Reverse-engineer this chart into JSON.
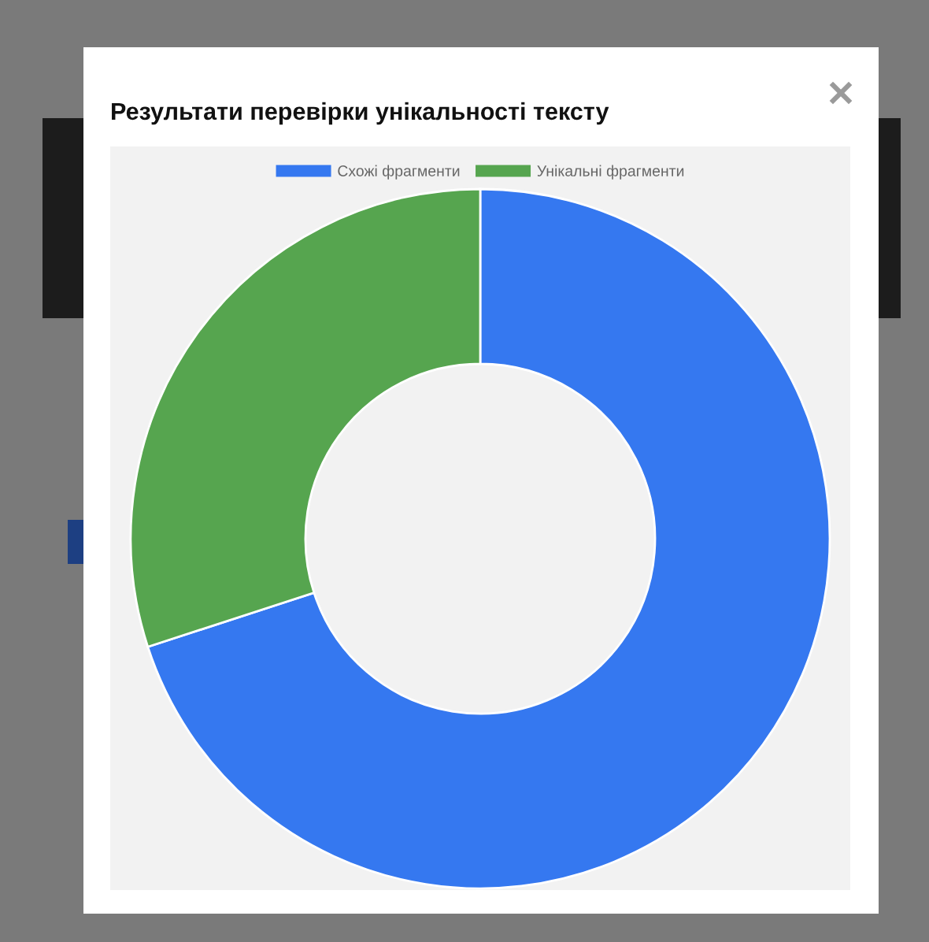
{
  "chart_data": {
    "type": "donut",
    "title": "Результати перевірки унікальності тексту",
    "categories": [
      "Схожі фрагменти",
      "Унікальні фрагменти"
    ],
    "values": [
      70,
      30
    ],
    "colors": [
      "#3578f0",
      "#56a54f"
    ],
    "legend": "top"
  }
}
